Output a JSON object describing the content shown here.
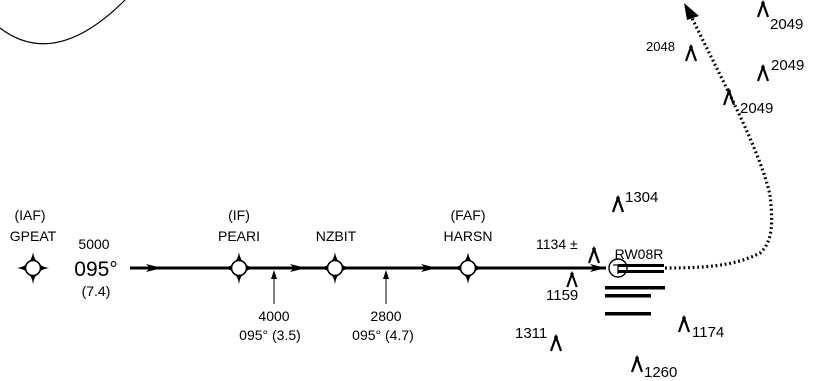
{
  "colors": {
    "ink": "#000000",
    "paper": "#ffffff"
  },
  "fixes": [
    {
      "role": "(IAF)",
      "name": "GPEAT"
    },
    {
      "role": "(IF)",
      "name": "PEARI"
    },
    {
      "role": "",
      "name": "NZBIT"
    },
    {
      "role": "(FAF)",
      "name": "HARSN"
    }
  ],
  "legs": {
    "gpeat_pearI": {
      "altitude": "5000",
      "course": "095°",
      "distance": "(7.4)"
    },
    "pearI_nzbit": {
      "altitude": "4000",
      "course_distance": "095° (3.5)"
    },
    "nzbit_harsn": {
      "altitude": "2800",
      "course_distance": "095° (4.7)"
    }
  },
  "runway": {
    "label": "RW08R",
    "threshold_elevation": "1134 ±"
  },
  "obstacles": [
    {
      "id": "o1304",
      "label": "1304"
    },
    {
      "id": "o1159",
      "label": "1159"
    },
    {
      "id": "o1311",
      "label": "1311"
    },
    {
      "id": "o1174",
      "label": "1174"
    },
    {
      "id": "o1260",
      "label": "1260"
    },
    {
      "id": "o2048",
      "label": "2048"
    },
    {
      "id": "o2049a",
      "label": "2049"
    },
    {
      "id": "o2049b",
      "label": "2049"
    },
    {
      "id": "o2049c",
      "label": "2049"
    }
  ],
  "icons": {
    "fix": "fly-by-waypoint-icon",
    "obstacle": "obstacle-icon",
    "arrow": "course-arrow-icon",
    "runway": "runway-threshold-icon"
  }
}
